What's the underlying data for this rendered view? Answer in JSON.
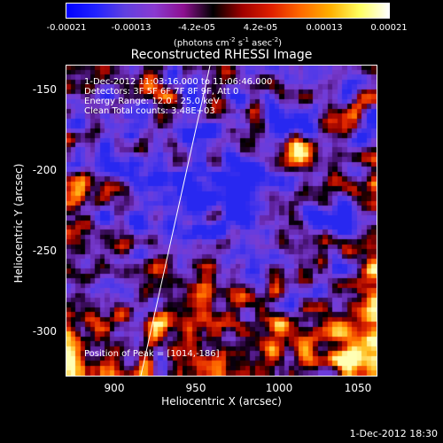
{
  "colorbar": {
    "ticks": [
      "-0.00021",
      "-0.00013",
      "-4.2e-05",
      "4.2e-05",
      "0.00013",
      "0.00021"
    ],
    "units_main": "(photons cm",
    "units_exp1": "-2",
    "units_mid1": " s",
    "units_exp2": "-1",
    "units_mid2": " asec",
    "units_exp3": "-2",
    "units_end": ")",
    "colors": [
      "#0000ff",
      "#2222ff",
      "#6040e0",
      "#8a3ad0",
      "#8c1090",
      "#000000",
      "#a00000",
      "#e02000",
      "#ff6a00",
      "#ffb000",
      "#ffff60",
      "#ffffff"
    ]
  },
  "title": "Reconstructed RHESSI Image",
  "info": {
    "time_range": "1-Dec-2012 11:03:16.000 to 11:06:46.000",
    "detectors": "Detectors: 3F 5F 6F 7F 8F 9F, Att 0",
    "energy": "Energy Range: 12.0 - 25.0 keV",
    "clean": "Clean    Total counts: 3.48E+03",
    "peak": "Position of Peak = [1014,-186]"
  },
  "axes": {
    "xlabel": "Heliocentric X (arcsec)",
    "ylabel": "Heliocentric Y (arcsec)",
    "xticks": [
      "900",
      "950",
      "1000",
      "1050"
    ],
    "yticks": [
      "-150",
      "-200",
      "-250",
      "-300"
    ],
    "xlim": [
      868,
      1062
    ],
    "ylim": [
      -328,
      -134
    ]
  },
  "footer_date": "1-Dec-2012 18:30"
}
